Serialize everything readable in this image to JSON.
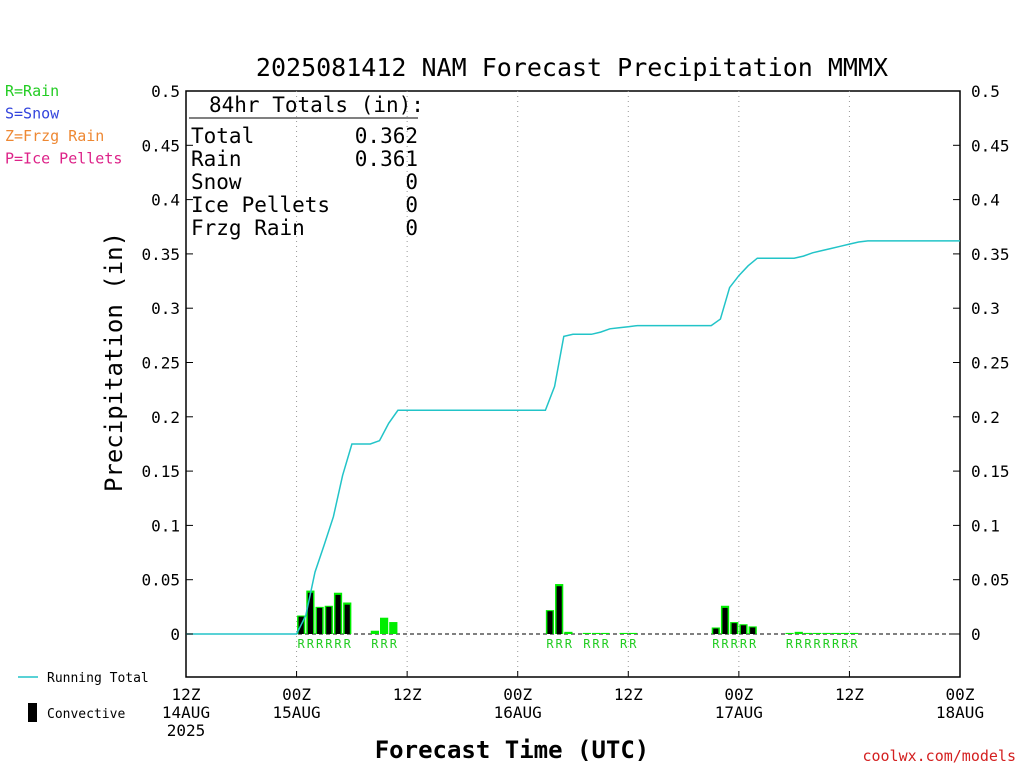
{
  "chart_data": {
    "type": "bar",
    "title": "2025081412 NAM Forecast Precipitation MMMX",
    "xlabel": "Forecast Time (UTC)",
    "ylabel": "Precipitation (in)",
    "ylim": [
      0,
      0.5
    ],
    "xlim_hours": [
      0,
      84
    ],
    "y_ticks": [
      "0",
      "0.05",
      "0.1",
      "0.15",
      "0.2",
      "0.25",
      "0.3",
      "0.35",
      "0.4",
      "0.45",
      "0.5"
    ],
    "x_ticks": [
      {
        "hour": 0,
        "lines": [
          "12Z",
          "14AUG",
          "2025"
        ]
      },
      {
        "hour": 12,
        "lines": [
          "00Z",
          "15AUG"
        ]
      },
      {
        "hour": 24,
        "lines": [
          "12Z"
        ]
      },
      {
        "hour": 36,
        "lines": [
          "00Z",
          "16AUG"
        ]
      },
      {
        "hour": 48,
        "lines": [
          "12Z"
        ]
      },
      {
        "hour": 60,
        "lines": [
          "00Z",
          "17AUG"
        ]
      },
      {
        "hour": 72,
        "lines": [
          "12Z"
        ]
      },
      {
        "hour": 84,
        "lines": [
          "00Z",
          "18AUG"
        ]
      }
    ],
    "grid_vertical_dotted": true,
    "bars": [
      {
        "hour": 13,
        "total": 0.017,
        "convective": 0.016
      },
      {
        "hour": 14,
        "total": 0.04,
        "convective": 0.038
      },
      {
        "hour": 15,
        "total": 0.025,
        "convective": 0.024
      },
      {
        "hour": 16,
        "total": 0.026,
        "convective": 0.025
      },
      {
        "hour": 17,
        "total": 0.038,
        "convective": 0.036
      },
      {
        "hour": 18,
        "total": 0.029,
        "convective": 0.027
      },
      {
        "hour": 21,
        "total": 0.003,
        "convective": 0.0
      },
      {
        "hour": 22,
        "total": 0.015,
        "convective": 0.0
      },
      {
        "hour": 23,
        "total": 0.011,
        "convective": 0.0
      },
      {
        "hour": 40,
        "total": 0.022,
        "convective": 0.021
      },
      {
        "hour": 41,
        "total": 0.046,
        "convective": 0.044
      },
      {
        "hour": 42,
        "total": 0.002,
        "convective": 0.0
      },
      {
        "hour": 44,
        "total": 0.001,
        "convective": 0.0
      },
      {
        "hour": 45,
        "total": 0.001,
        "convective": 0.0
      },
      {
        "hour": 46,
        "total": 0.001,
        "convective": 0.0
      },
      {
        "hour": 48,
        "total": 0.001,
        "convective": 0.0
      },
      {
        "hour": 49,
        "total": 0.001,
        "convective": 0.0
      },
      {
        "hour": 58,
        "total": 0.006,
        "convective": 0.005
      },
      {
        "hour": 59,
        "total": 0.026,
        "convective": 0.024
      },
      {
        "hour": 60,
        "total": 0.011,
        "convective": 0.01
      },
      {
        "hour": 61,
        "total": 0.009,
        "convective": 0.008
      },
      {
        "hour": 62,
        "total": 0.007,
        "convective": 0.006
      },
      {
        "hour": 66,
        "total": 0.001,
        "convective": 0.0
      },
      {
        "hour": 67,
        "total": 0.002,
        "convective": 0.0
      },
      {
        "hour": 68,
        "total": 0.001,
        "convective": 0.0
      },
      {
        "hour": 69,
        "total": 0.001,
        "convective": 0.0
      },
      {
        "hour": 70,
        "total": 0.001,
        "convective": 0.0
      },
      {
        "hour": 71,
        "total": 0.001,
        "convective": 0.0
      },
      {
        "hour": 72,
        "total": 0.001,
        "convective": 0.0
      },
      {
        "hour": 73,
        "total": 0.001,
        "convective": 0.0
      }
    ],
    "running_total": {
      "name": "Running Total",
      "points": [
        [
          0,
          0.0
        ],
        [
          12,
          0.0
        ],
        [
          13,
          0.017
        ],
        [
          14,
          0.057
        ],
        [
          15,
          0.082
        ],
        [
          16,
          0.108
        ],
        [
          17,
          0.146
        ],
        [
          18,
          0.175
        ],
        [
          19,
          0.175
        ],
        [
          20,
          0.175
        ],
        [
          21,
          0.178
        ],
        [
          22,
          0.194
        ],
        [
          23,
          0.206
        ],
        [
          24,
          0.206
        ],
        [
          39,
          0.206
        ],
        [
          40,
          0.228
        ],
        [
          41,
          0.274
        ],
        [
          42,
          0.276
        ],
        [
          44,
          0.276
        ],
        [
          45,
          0.278
        ],
        [
          46,
          0.281
        ],
        [
          47,
          0.282
        ],
        [
          48,
          0.283
        ],
        [
          49,
          0.284
        ],
        [
          57,
          0.284
        ],
        [
          58,
          0.29
        ],
        [
          59,
          0.319
        ],
        [
          60,
          0.33
        ],
        [
          61,
          0.339
        ],
        [
          62,
          0.346
        ],
        [
          66,
          0.346
        ],
        [
          67,
          0.348
        ],
        [
          68,
          0.351
        ],
        [
          69,
          0.353
        ],
        [
          70,
          0.355
        ],
        [
          71,
          0.357
        ],
        [
          72,
          0.359
        ],
        [
          73,
          0.361
        ],
        [
          74,
          0.362
        ],
        [
          84,
          0.362
        ]
      ]
    },
    "precip_type_labels": [
      {
        "hour": 13,
        "text": "R"
      },
      {
        "hour": 14,
        "text": "R"
      },
      {
        "hour": 15,
        "text": "R"
      },
      {
        "hour": 16,
        "text": "R"
      },
      {
        "hour": 17,
        "text": "R"
      },
      {
        "hour": 18,
        "text": "R"
      },
      {
        "hour": 21,
        "text": "R"
      },
      {
        "hour": 22,
        "text": "R"
      },
      {
        "hour": 23,
        "text": "R"
      },
      {
        "hour": 40,
        "text": "R"
      },
      {
        "hour": 41,
        "text": "R"
      },
      {
        "hour": 42,
        "text": "R"
      },
      {
        "hour": 44,
        "text": "R"
      },
      {
        "hour": 45,
        "text": "R"
      },
      {
        "hour": 46,
        "text": "R"
      },
      {
        "hour": 48,
        "text": "R"
      },
      {
        "hour": 49,
        "text": "R"
      },
      {
        "hour": 58,
        "text": "R"
      },
      {
        "hour": 59,
        "text": "R"
      },
      {
        "hour": 60,
        "text": "R"
      },
      {
        "hour": 61,
        "text": "R"
      },
      {
        "hour": 62,
        "text": "R"
      },
      {
        "hour": 66,
        "text": "R"
      },
      {
        "hour": 67,
        "text": "R"
      },
      {
        "hour": 68,
        "text": "R"
      },
      {
        "hour": 69,
        "text": "R"
      },
      {
        "hour": 70,
        "text": "R"
      },
      {
        "hour": 71,
        "text": "R"
      },
      {
        "hour": 72,
        "text": "R"
      },
      {
        "hour": 73,
        "text": "R"
      }
    ],
    "totals_box": {
      "heading": "84hr Totals (in):",
      "rows": [
        {
          "label": "Total",
          "value": "0.362"
        },
        {
          "label": "Rain",
          "value": "0.361"
        },
        {
          "label": "Snow",
          "value": "0"
        },
        {
          "label": "Ice Pellets",
          "value": "0"
        },
        {
          "label": "Frzg Rain",
          "value": "0"
        }
      ]
    },
    "type_legend": [
      {
        "text": "R=Rain",
        "color": "#22cc22"
      },
      {
        "text": "S=Snow",
        "color": "#3344dd"
      },
      {
        "text": "Z=Frzg Rain",
        "color": "#ee8833"
      },
      {
        "text": "P=Ice Pellets",
        "color": "#dd2288"
      }
    ],
    "series_legend": [
      {
        "name": "Running Total",
        "color": "#22c4c8"
      },
      {
        "name": "Convective",
        "color": "#000000"
      }
    ],
    "colors": {
      "total_bar": "#00ee00",
      "convective_bar": "#000000",
      "running_total": "#22c4c8",
      "grid": "#999999"
    },
    "credit": "coolwx.com/models"
  }
}
